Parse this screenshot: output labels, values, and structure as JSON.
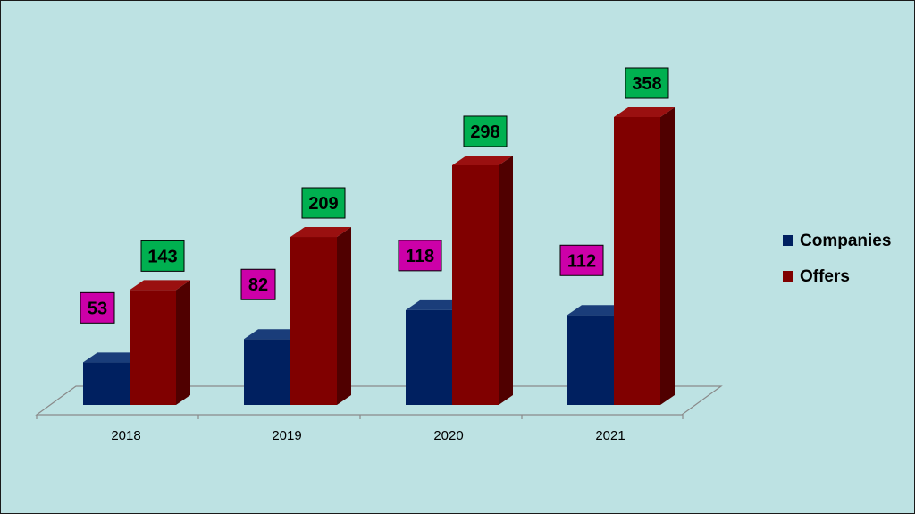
{
  "chart_data": {
    "type": "bar",
    "style": "3d-clustered-column",
    "categories": [
      "2018",
      "2019",
      "2020",
      "2021"
    ],
    "series": [
      {
        "name": "Companies",
        "values": [
          53,
          82,
          118,
          112
        ],
        "color": "#002060",
        "side_color": "#001540",
        "top_color": "#1a3d7a",
        "label_bg": "#cc00a8"
      },
      {
        "name": "Offers",
        "values": [
          143,
          209,
          298,
          358
        ],
        "color": "#800000",
        "side_color": "#500000",
        "top_color": "#9a1010",
        "label_bg": "#00b050"
      }
    ],
    "ylim": [
      0,
      358
    ],
    "grid": false,
    "legend_position": "right",
    "title": "",
    "xlabel": "",
    "ylabel": "",
    "background": "#bde2e3"
  }
}
